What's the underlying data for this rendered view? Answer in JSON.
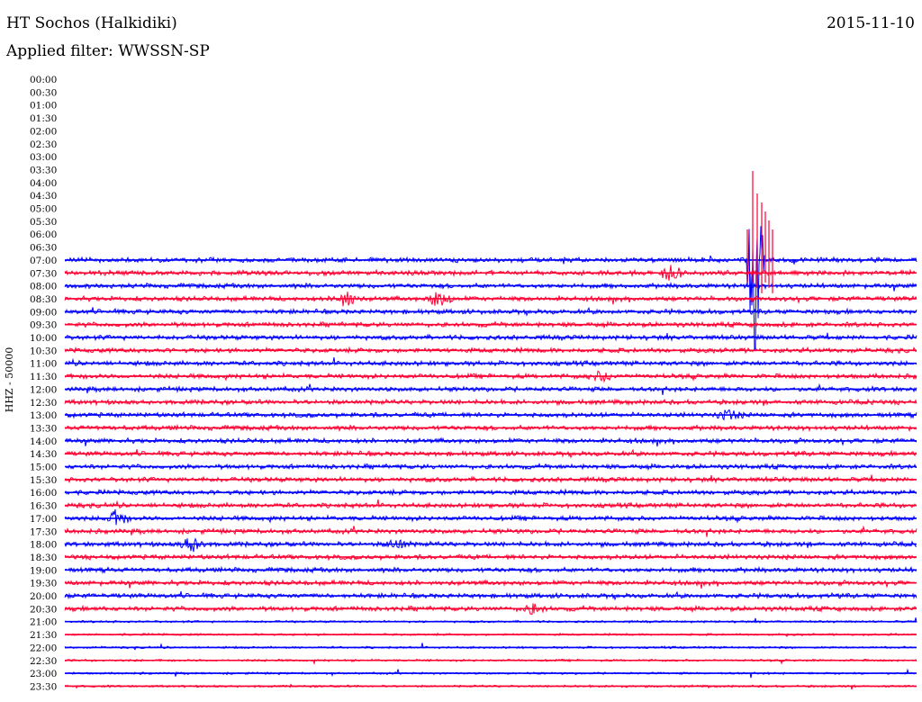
{
  "header": {
    "station": "HT Sochos (Halkidiki)",
    "date": "2015-11-10",
    "filter": "Applied filter: WWSSN-SP"
  },
  "chart_data": {
    "type": "line",
    "kind": "helicorder",
    "channel_label": "HHZ - 50000",
    "row_labels": [
      "00:00",
      "00:30",
      "01:00",
      "01:30",
      "02:00",
      "02:30",
      "03:00",
      "03:30",
      "04:00",
      "04:30",
      "05:00",
      "05:30",
      "06:00",
      "06:30",
      "07:00",
      "07:30",
      "08:00",
      "08:30",
      "09:00",
      "09:30",
      "10:00",
      "10:30",
      "11:00",
      "11:30",
      "12:00",
      "12:30",
      "13:00",
      "13:30",
      "14:00",
      "14:30",
      "15:00",
      "15:30",
      "16:00",
      "16:30",
      "17:00",
      "17:30",
      "18:00",
      "18:30",
      "19:00",
      "19:30",
      "20:00",
      "20:30",
      "21:00",
      "21:30",
      "22:00",
      "22:30",
      "23:00",
      "23:30"
    ],
    "first_trace_row": "07:00",
    "row_duration_minutes": 30,
    "colors": {
      "blue": "#0000ff",
      "red": "#ff0033"
    },
    "color_pattern": "alternating starting blue at 07:00",
    "events": [
      {
        "row": "07:00",
        "position": 0.81,
        "amplitude": "very large",
        "note": "strong burst reaching up to 03:30 line"
      },
      {
        "row": "07:30",
        "position": 0.71,
        "amplitude": "moderate"
      },
      {
        "row": "08:30",
        "position": 0.33,
        "amplitude": "moderate"
      },
      {
        "row": "08:30",
        "position": 0.44,
        "amplitude": "moderate"
      },
      {
        "row": "11:30",
        "position": 0.63,
        "amplitude": "small"
      },
      {
        "row": "13:00",
        "position": 0.78,
        "amplitude": "small"
      },
      {
        "row": "17:00",
        "position": 0.06,
        "amplitude": "moderate"
      },
      {
        "row": "18:00",
        "position": 0.15,
        "amplitude": "moderate"
      },
      {
        "row": "18:00",
        "position": 0.39,
        "amplitude": "small"
      },
      {
        "row": "20:30",
        "position": 0.55,
        "amplitude": "small"
      }
    ]
  }
}
